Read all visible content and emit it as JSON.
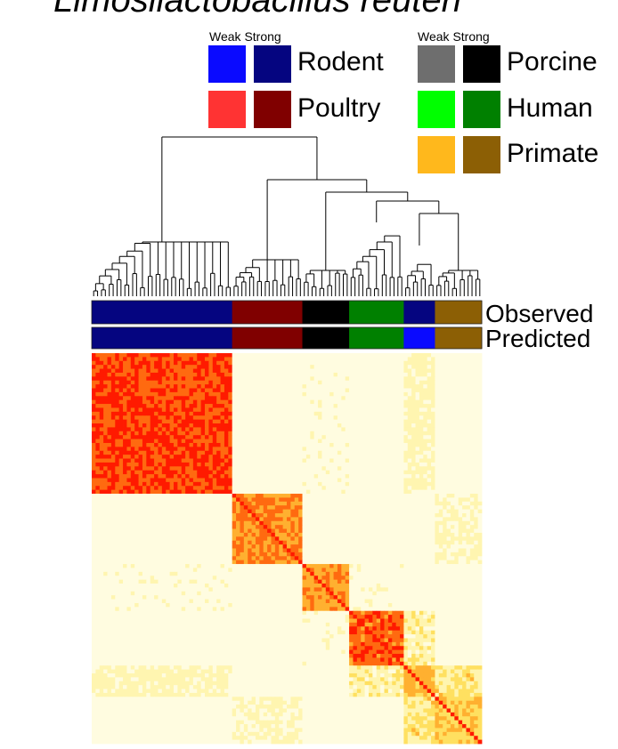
{
  "chart_data": {
    "type": "heatmap",
    "title": "Limosilactobacillus reuteri",
    "legend": {
      "scale_headers": [
        "Weak",
        "Strong"
      ],
      "groups": [
        {
          "name": "Rodent",
          "weak": "#0a0aff",
          "strong": "#050580"
        },
        {
          "name": "Poultry",
          "weak": "#ff3333",
          "strong": "#800000"
        },
        {
          "name": "Porcine",
          "weak": "#6e6e6e",
          "strong": "#000000"
        },
        {
          "name": "Human",
          "weak": "#00ff00",
          "strong": "#008000"
        },
        {
          "name": "Primate",
          "weak": "#ffb81c",
          "strong": "#8c5f05"
        }
      ]
    },
    "annotation_rows": [
      "Observed",
      "Predicted"
    ],
    "observed": [
      {
        "group": "Rodent",
        "strength": "strong",
        "n": 36
      },
      {
        "group": "Poultry",
        "strength": "strong",
        "n": 18
      },
      {
        "group": "Porcine",
        "strength": "strong",
        "n": 12
      },
      {
        "group": "Human",
        "strength": "strong",
        "n": 14
      },
      {
        "group": "Rodent",
        "strength": "strong",
        "n": 8
      },
      {
        "group": "Primate",
        "strength": "strong",
        "n": 12
      }
    ],
    "predicted": [
      {
        "group": "Rodent",
        "strength": "strong",
        "n": 36
      },
      {
        "group": "Poultry",
        "strength": "strong",
        "n": 18
      },
      {
        "group": "Porcine",
        "strength": "strong",
        "n": 12
      },
      {
        "group": "Human",
        "strength": "strong",
        "n": 14
      },
      {
        "group": "Rodent",
        "strength": "weak",
        "n": 8
      },
      {
        "group": "Primate",
        "strength": "strong",
        "n": 12
      }
    ],
    "similarity_scale": [
      "#fffce0",
      "#fff5b0",
      "#ffe060",
      "#ffb030",
      "#ff6a10",
      "#ff1a00"
    ],
    "diagonal_block_intensity": [
      0.85,
      0.7,
      0.65,
      0.8,
      0.55,
      0.5
    ]
  }
}
